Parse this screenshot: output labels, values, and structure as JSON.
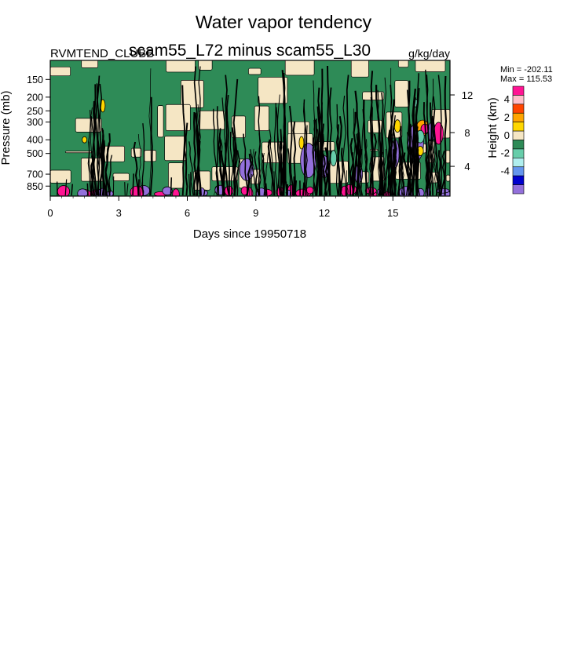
{
  "chart_data": {
    "type": "heatmap",
    "title": "Water vapor tendency",
    "subtitle": "scam55_L72 minus scam55_L30",
    "left_label": "RVMTEND_CLUBB",
    "units_label": "g/kg/day",
    "xlabel": "Days since 19950718",
    "ylabel": "Pressure (mb)",
    "ylabel_right": "Height (km)",
    "x_ticks": [
      0,
      3,
      6,
      9,
      12,
      15
    ],
    "x_tick_labels": [
      "0",
      "3",
      "6",
      "9",
      "12",
      "15"
    ],
    "xlim": [
      0,
      17.5
    ],
    "y_ticks": [
      150,
      200,
      250,
      300,
      400,
      500,
      700,
      850
    ],
    "y_tick_labels": [
      "150",
      "200",
      "250",
      "300",
      "400",
      "500",
      "700",
      "850"
    ],
    "y_scale": "log",
    "ylim": [
      1000,
      110
    ],
    "y_right_ticks": [
      4,
      8,
      12
    ],
    "y_right_tick_labels": [
      "4",
      "8",
      "12"
    ],
    "stats": {
      "min_label": "Min = -202.11",
      "max_label": "Max = 115.53"
    },
    "colorbar": {
      "labels": [
        "4",
        "2",
        "0",
        "-2",
        "-4"
      ],
      "colors": [
        "#ff1493",
        "#ffc0cb",
        "#ff4500",
        "#ffa500",
        "#ffd700",
        "#f5e6c4",
        "#2e8b57",
        "#66cdaa",
        "#afeeee",
        "#6495ed",
        "#0000cd",
        "#9370db"
      ]
    },
    "field_colors": {
      "zero_band": "#f5e6c4",
      "small_negative": "#2e8b57",
      "negative": "#66cdaa",
      "strong_negative": "#9370db",
      "strong_positive": "#ff1493",
      "positive": "#ffd700",
      "moderate_positive": "#ffa500",
      "contour": "#000000"
    }
  }
}
